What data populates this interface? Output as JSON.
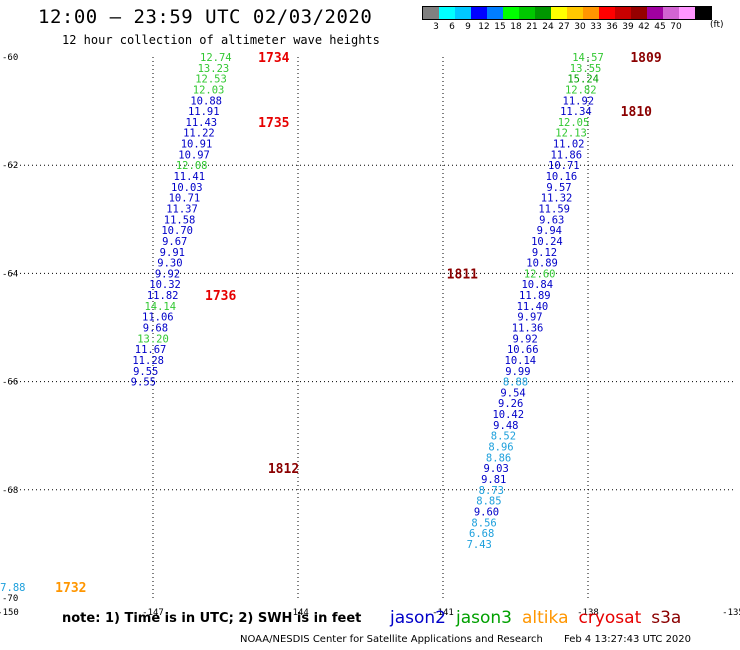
{
  "header": {
    "title": "12:00 – 23:59 UTC 02/03/2020",
    "subtitle": "12 hour collection of altimeter wave heights"
  },
  "colorbar": {
    "colors": [
      "#808080",
      "#00ffff",
      "#00c8ff",
      "#0000ff",
      "#007dff",
      "#00ff00",
      "#00c800",
      "#009600",
      "#ffff00",
      "#ffc800",
      "#ff9600",
      "#ff0000",
      "#c80000",
      "#960000",
      "#a000a0",
      "#d264d2",
      "#ff96ff",
      "#000000"
    ],
    "labels": [
      "3",
      "6",
      "9",
      "12",
      "15",
      "18",
      "21",
      "24",
      "27",
      "30",
      "33",
      "36",
      "39",
      "42",
      "45",
      "70"
    ],
    "unit": "(ft)"
  },
  "chart_data": {
    "type": "scatter",
    "xlim": [
      -150,
      -135
    ],
    "ylim": [
      -70,
      -60
    ],
    "xticks": [
      "-150",
      "-147",
      "-144",
      "-141",
      "-138",
      "-135"
    ],
    "yticks": [
      "-60",
      "-62",
      "-64",
      "-66",
      "-68",
      "-70"
    ],
    "grid": true,
    "track1": {
      "color_default": "#0000c8",
      "points": [
        {
          "lon": -145.7,
          "lat": -60.0,
          "v": "12.74",
          "c": "#32c832"
        },
        {
          "lon": -145.75,
          "lat": -60.2,
          "v": "13.23",
          "c": "#32c832"
        },
        {
          "lon": -145.8,
          "lat": -60.4,
          "v": "12.53",
          "c": "#32c832"
        },
        {
          "lon": -145.85,
          "lat": -60.6,
          "v": "12.03",
          "c": "#32c832"
        },
        {
          "lon": -145.9,
          "lat": -60.8,
          "v": "10.88",
          "c": "#0000c8"
        },
        {
          "lon": -145.95,
          "lat": -61.0,
          "v": "11.91",
          "c": "#0000c8"
        },
        {
          "lon": -146.0,
          "lat": -61.2,
          "v": "11.43",
          "c": "#0000c8"
        },
        {
          "lon": -146.05,
          "lat": -61.4,
          "v": "11.22",
          "c": "#0000c8"
        },
        {
          "lon": -146.1,
          "lat": -61.6,
          "v": "10.91",
          "c": "#0000c8"
        },
        {
          "lon": -146.15,
          "lat": -61.8,
          "v": "10.97",
          "c": "#0000c8"
        },
        {
          "lon": -146.2,
          "lat": -62.0,
          "v": "12.08",
          "c": "#32c832"
        },
        {
          "lon": -146.25,
          "lat": -62.2,
          "v": "11.41",
          "c": "#0000c8"
        },
        {
          "lon": -146.3,
          "lat": -62.4,
          "v": "10.03",
          "c": "#0000c8"
        },
        {
          "lon": -146.35,
          "lat": -62.6,
          "v": "10.71",
          "c": "#0000c8"
        },
        {
          "lon": -146.4,
          "lat": -62.8,
          "v": "11.37",
          "c": "#0000c8"
        },
        {
          "lon": -146.45,
          "lat": -63.0,
          "v": "11.58",
          "c": "#0000c8"
        },
        {
          "lon": -146.5,
          "lat": -63.2,
          "v": "10.70",
          "c": "#0000c8"
        },
        {
          "lon": -146.55,
          "lat": -63.4,
          "v": "9.67",
          "c": "#0000c8"
        },
        {
          "lon": -146.6,
          "lat": -63.6,
          "v": "9.91",
          "c": "#0000c8"
        },
        {
          "lon": -146.65,
          "lat": -63.8,
          "v": "9.30",
          "c": "#0000c8"
        },
        {
          "lon": -146.7,
          "lat": -64.0,
          "v": "9.92",
          "c": "#0000c8"
        },
        {
          "lon": -146.75,
          "lat": -64.2,
          "v": "10.32",
          "c": "#0000c8"
        },
        {
          "lon": -146.8,
          "lat": -64.4,
          "v": "11.82",
          "c": "#0000c8"
        },
        {
          "lon": -146.85,
          "lat": -64.6,
          "v": "14.14",
          "c": "#32c832"
        },
        {
          "lon": -146.9,
          "lat": -64.8,
          "v": "11.06",
          "c": "#0000c8"
        },
        {
          "lon": -146.95,
          "lat": -65.0,
          "v": "9.68",
          "c": "#0000c8"
        },
        {
          "lon": -147.0,
          "lat": -65.2,
          "v": "13.20",
          "c": "#32c832"
        },
        {
          "lon": -147.05,
          "lat": -65.4,
          "v": "11.67",
          "c": "#0000c8"
        },
        {
          "lon": -147.1,
          "lat": -65.6,
          "v": "11.28",
          "c": "#0000c8"
        },
        {
          "lon": -147.15,
          "lat": -65.8,
          "v": "9.55",
          "c": "#0000c8"
        },
        {
          "lon": -147.2,
          "lat": -66.0,
          "v": "9.55",
          "c": "#0000c8"
        }
      ],
      "times": [
        {
          "lon": -144.5,
          "lat": -60.0,
          "t": "1734",
          "c": "#e60000"
        },
        {
          "lon": -144.5,
          "lat": -61.2,
          "t": "1735",
          "c": "#e60000"
        },
        {
          "lon": -145.6,
          "lat": -64.4,
          "t": "1736",
          "c": "#e60000"
        }
      ]
    },
    "track2": {
      "points": [
        {
          "lon": -138.0,
          "lat": -60.0,
          "v": "14.57",
          "c": "#32c832"
        },
        {
          "lon": -138.05,
          "lat": -60.2,
          "v": "13.55",
          "c": "#32c832"
        },
        {
          "lon": -138.1,
          "lat": -60.4,
          "v": "15.24",
          "c": "#00a000"
        },
        {
          "lon": -138.15,
          "lat": -60.6,
          "v": "12.82",
          "c": "#32c832"
        },
        {
          "lon": -138.2,
          "lat": -60.8,
          "v": "11.92",
          "c": "#0000c8"
        },
        {
          "lon": -138.25,
          "lat": -61.0,
          "v": "11.34",
          "c": "#0000c8"
        },
        {
          "lon": -138.3,
          "lat": -61.2,
          "v": "12.05",
          "c": "#32c832"
        },
        {
          "lon": -138.35,
          "lat": -61.4,
          "v": "12.13",
          "c": "#32c832"
        },
        {
          "lon": -138.4,
          "lat": -61.6,
          "v": "11.02",
          "c": "#0000c8"
        },
        {
          "lon": -138.45,
          "lat": -61.8,
          "v": "11.86",
          "c": "#0000c8"
        },
        {
          "lon": -138.5,
          "lat": -62.0,
          "v": "10.71",
          "c": "#0000c8"
        },
        {
          "lon": -138.55,
          "lat": -62.2,
          "v": "10.16",
          "c": "#0000c8"
        },
        {
          "lon": -138.6,
          "lat": -62.4,
          "v": "9.57",
          "c": "#0000c8"
        },
        {
          "lon": -138.65,
          "lat": -62.6,
          "v": "11.32",
          "c": "#0000c8"
        },
        {
          "lon": -138.7,
          "lat": -62.8,
          "v": "11.59",
          "c": "#0000c8"
        },
        {
          "lon": -138.75,
          "lat": -63.0,
          "v": "9.63",
          "c": "#0000c8"
        },
        {
          "lon": -138.8,
          "lat": -63.2,
          "v": "9.94",
          "c": "#0000c8"
        },
        {
          "lon": -138.85,
          "lat": -63.4,
          "v": "10.24",
          "c": "#0000c8"
        },
        {
          "lon": -138.9,
          "lat": -63.6,
          "v": "9.12",
          "c": "#0000c8"
        },
        {
          "lon": -138.95,
          "lat": -63.8,
          "v": "10.89",
          "c": "#0000c8"
        },
        {
          "lon": -139.0,
          "lat": -64.0,
          "v": "12.60",
          "c": "#32c832"
        },
        {
          "lon": -139.05,
          "lat": -64.2,
          "v": "10.84",
          "c": "#0000c8"
        },
        {
          "lon": -139.1,
          "lat": -64.4,
          "v": "11.89",
          "c": "#0000c8"
        },
        {
          "lon": -139.15,
          "lat": -64.6,
          "v": "11.40",
          "c": "#0000c8"
        },
        {
          "lon": -139.2,
          "lat": -64.8,
          "v": "9.97",
          "c": "#0000c8"
        },
        {
          "lon": -139.25,
          "lat": -65.0,
          "v": "11.36",
          "c": "#0000c8"
        },
        {
          "lon": -139.3,
          "lat": -65.2,
          "v": "9.92",
          "c": "#0000c8"
        },
        {
          "lon": -139.35,
          "lat": -65.4,
          "v": "10.66",
          "c": "#0000c8"
        },
        {
          "lon": -139.4,
          "lat": -65.6,
          "v": "10.14",
          "c": "#0000c8"
        },
        {
          "lon": -139.45,
          "lat": -65.8,
          "v": "9.99",
          "c": "#0000c8"
        },
        {
          "lon": -139.5,
          "lat": -66.0,
          "v": "8.88",
          "c": "#1ea0dc"
        },
        {
          "lon": -139.55,
          "lat": -66.2,
          "v": "9.54",
          "c": "#0000c8"
        },
        {
          "lon": -139.6,
          "lat": -66.4,
          "v": "9.26",
          "c": "#0000c8"
        },
        {
          "lon": -139.65,
          "lat": -66.6,
          "v": "10.42",
          "c": "#0000c8"
        },
        {
          "lon": -139.7,
          "lat": -66.8,
          "v": "9.48",
          "c": "#0000c8"
        },
        {
          "lon": -139.75,
          "lat": -67.0,
          "v": "8.52",
          "c": "#1ea0dc"
        },
        {
          "lon": -139.8,
          "lat": -67.2,
          "v": "8.96",
          "c": "#1ea0dc"
        },
        {
          "lon": -139.85,
          "lat": -67.4,
          "v": "8.86",
          "c": "#1ea0dc"
        },
        {
          "lon": -139.9,
          "lat": -67.6,
          "v": "9.03",
          "c": "#0000c8"
        },
        {
          "lon": -139.95,
          "lat": -67.8,
          "v": "9.81",
          "c": "#0000c8"
        },
        {
          "lon": -140.0,
          "lat": -68.0,
          "v": "8.73",
          "c": "#1ea0dc"
        },
        {
          "lon": -140.05,
          "lat": -68.2,
          "v": "8.85",
          "c": "#1ea0dc"
        },
        {
          "lon": -140.1,
          "lat": -68.4,
          "v": "9.60",
          "c": "#0000c8"
        },
        {
          "lon": -140.15,
          "lat": -68.6,
          "v": "8.56",
          "c": "#1ea0dc"
        },
        {
          "lon": -140.2,
          "lat": -68.8,
          "v": "6.68",
          "c": "#1ea0dc"
        },
        {
          "lon": -140.25,
          "lat": -69.0,
          "v": "7.43",
          "c": "#1ea0dc"
        },
        {
          "lon": -149.9,
          "lat": -69.8,
          "v": "7.88",
          "c": "#1ea0dc"
        }
      ],
      "times": [
        {
          "lon": -136.8,
          "lat": -60.0,
          "t": "1809",
          "c": "#8b0000"
        },
        {
          "lon": -137.0,
          "lat": -61.0,
          "t": "1810",
          "c": "#8b0000"
        },
        {
          "lon": -140.6,
          "lat": -64.0,
          "t": "1811",
          "c": "#8b0000"
        },
        {
          "lon": -144.3,
          "lat": -67.6,
          "t": "1812",
          "c": "#8b0000"
        },
        {
          "lon": -148.7,
          "lat": -69.8,
          "t": "1732",
          "c": "#ff9600"
        }
      ]
    }
  },
  "footer": {
    "note": "note: 1) Time is in UTC; 2) SWH is in feet",
    "satellites": [
      {
        "name": "jason2",
        "color": "#0000c8"
      },
      {
        "name": "jason3",
        "color": "#00a000"
      },
      {
        "name": "altika",
        "color": "#ff9600"
      },
      {
        "name": "cryosat",
        "color": "#e60000"
      },
      {
        "name": "s3a",
        "color": "#8b0000"
      }
    ],
    "credit": "NOAA/NESDIS Center for Satellite Applications and Research",
    "timestamp": "Feb  4 13:27:43 UTC 2020"
  }
}
